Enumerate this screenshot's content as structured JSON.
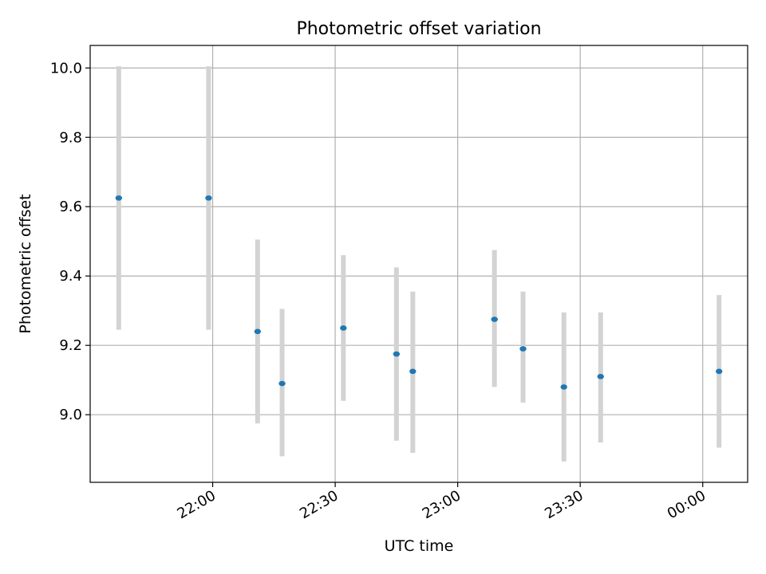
{
  "chart_data": {
    "type": "scatter",
    "title": "Photometric offset variation",
    "xlabel": "UTC time",
    "ylabel": "Photometric offset",
    "x_axis_type": "time",
    "xlim": [
      "21:30",
      "00:11"
    ],
    "ylim": [
      8.805,
      10.065
    ],
    "x_ticks": [
      "22:00",
      "22:30",
      "23:00",
      "23:30",
      "00:00"
    ],
    "y_ticks": [
      9.0,
      9.2,
      9.4,
      9.6,
      9.8,
      10.0
    ],
    "y_tick_labels": [
      "9.0",
      "9.2",
      "9.4",
      "9.6",
      "9.8",
      "10.0"
    ],
    "grid": true,
    "marker_color": "#1f77b4",
    "errorbar_color": "#d3d3d3",
    "points": [
      {
        "x": "21:37",
        "y": 9.625,
        "yerr_low": 9.245,
        "yerr_high": 10.005
      },
      {
        "x": "21:59",
        "y": 9.625,
        "yerr_low": 9.245,
        "yerr_high": 10.005
      },
      {
        "x": "22:11",
        "y": 9.24,
        "yerr_low": 8.975,
        "yerr_high": 9.505
      },
      {
        "x": "22:17",
        "y": 9.09,
        "yerr_low": 8.88,
        "yerr_high": 9.305
      },
      {
        "x": "22:32",
        "y": 9.25,
        "yerr_low": 9.04,
        "yerr_high": 9.46
      },
      {
        "x": "22:45",
        "y": 9.175,
        "yerr_low": 8.925,
        "yerr_high": 9.425
      },
      {
        "x": "22:49",
        "y": 9.125,
        "yerr_low": 8.89,
        "yerr_high": 9.355
      },
      {
        "x": "23:09",
        "y": 9.275,
        "yerr_low": 9.08,
        "yerr_high": 9.475
      },
      {
        "x": "23:16",
        "y": 9.19,
        "yerr_low": 9.035,
        "yerr_high": 9.355
      },
      {
        "x": "23:26",
        "y": 9.08,
        "yerr_low": 8.865,
        "yerr_high": 9.295
      },
      {
        "x": "23:35",
        "y": 9.11,
        "yerr_low": 8.92,
        "yerr_high": 9.295
      },
      {
        "x": "00:04",
        "y": 9.125,
        "yerr_low": 8.905,
        "yerr_high": 9.345
      }
    ]
  }
}
